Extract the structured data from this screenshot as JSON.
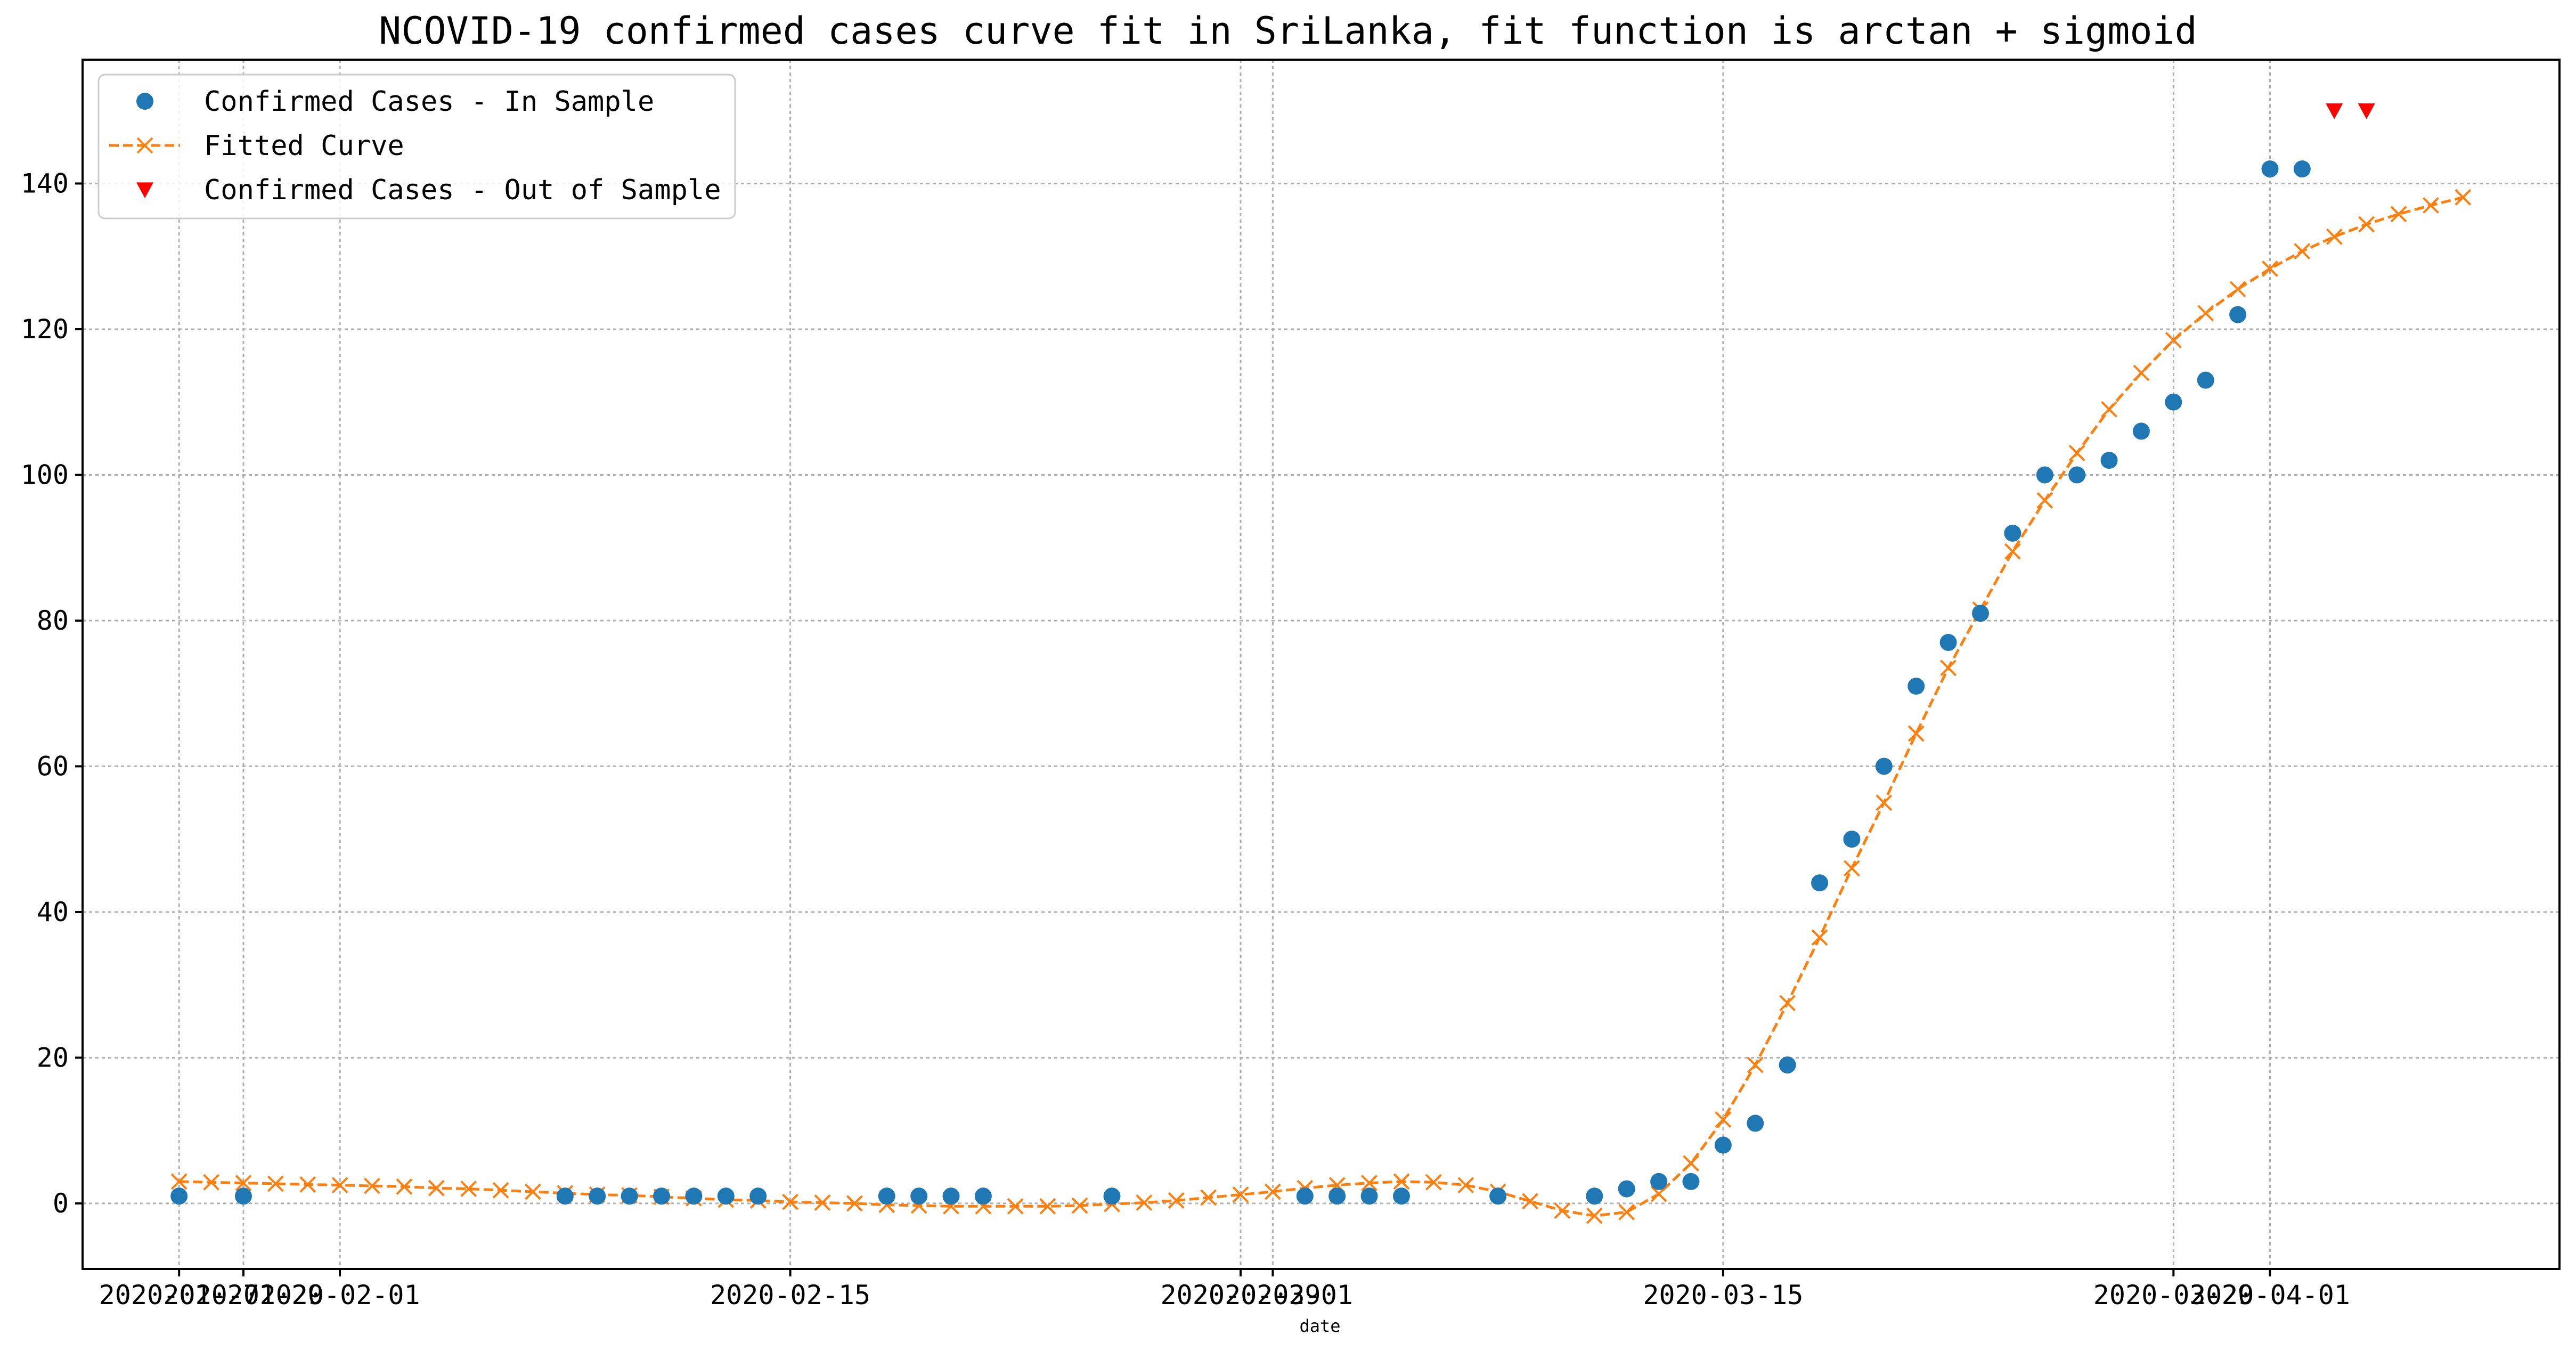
{
  "chart_data": {
    "type": "line",
    "title": "NCOVID-19 confirmed cases curve fit in SriLanka, fit function is arctan + sigmoid",
    "xlabel": "date",
    "ylabel": "",
    "x_axis": "date",
    "xlim": [
      "2020-01-24",
      "2020-04-10"
    ],
    "ylim": [
      -9,
      157
    ],
    "x_ticks": [
      {
        "date": "2020-01-27",
        "label": "2020-01-27"
      },
      {
        "date": "2020-01-29",
        "label": "2020-01-29"
      },
      {
        "date": "2020-02-01",
        "label": "2020-02-01"
      },
      {
        "date": "2020-02-15",
        "label": "2020-02-15"
      },
      {
        "date": "2020-02-29",
        "label": "2020-02-29"
      },
      {
        "date": "2020-03-01",
        "label": "2020-03-01"
      },
      {
        "date": "2020-03-15",
        "label": "2020-03-15"
      },
      {
        "date": "2020-03-29",
        "label": "2020-03-29"
      },
      {
        "date": "2020-04-01",
        "label": "2020-04-01"
      }
    ],
    "y_ticks": [
      0,
      20,
      40,
      60,
      80,
      100,
      120,
      140
    ],
    "grid": true,
    "legend_position": "top-left",
    "series": [
      {
        "name": "Confirmed Cases - In Sample",
        "style": "markers-circle",
        "color": "#1f77b4",
        "points": [
          [
            "2020-01-27",
            1
          ],
          [
            "2020-01-29",
            1
          ],
          [
            "2020-02-08",
            1
          ],
          [
            "2020-02-09",
            1
          ],
          [
            "2020-02-10",
            1
          ],
          [
            "2020-02-11",
            1
          ],
          [
            "2020-02-12",
            1
          ],
          [
            "2020-02-13",
            1
          ],
          [
            "2020-02-14",
            1
          ],
          [
            "2020-02-18",
            1
          ],
          [
            "2020-02-19",
            1
          ],
          [
            "2020-02-20",
            1
          ],
          [
            "2020-02-21",
            1
          ],
          [
            "2020-02-25",
            1
          ],
          [
            "2020-03-02",
            1
          ],
          [
            "2020-03-03",
            1
          ],
          [
            "2020-03-04",
            1
          ],
          [
            "2020-03-05",
            1
          ],
          [
            "2020-03-08",
            1
          ],
          [
            "2020-03-11",
            1
          ],
          [
            "2020-03-12",
            2
          ],
          [
            "2020-03-13",
            3
          ],
          [
            "2020-03-14",
            3
          ],
          [
            "2020-03-15",
            8
          ],
          [
            "2020-03-16",
            11
          ],
          [
            "2020-03-17",
            19
          ],
          [
            "2020-03-18",
            44
          ],
          [
            "2020-03-19",
            50
          ],
          [
            "2020-03-20",
            60
          ],
          [
            "2020-03-21",
            71
          ],
          [
            "2020-03-22",
            77
          ],
          [
            "2020-03-23",
            81
          ],
          [
            "2020-03-24",
            92
          ],
          [
            "2020-03-25",
            100
          ],
          [
            "2020-03-26",
            100
          ],
          [
            "2020-03-27",
            102
          ],
          [
            "2020-03-28",
            106
          ],
          [
            "2020-03-29",
            110
          ],
          [
            "2020-03-30",
            113
          ],
          [
            "2020-03-31",
            122
          ],
          [
            "2020-04-01",
            142
          ],
          [
            "2020-04-02",
            142
          ]
        ]
      },
      {
        "name": "Fitted Curve",
        "style": "dashed-line-x-markers",
        "color": "#ff7f0e",
        "points": [
          [
            "2020-01-27",
            3.0
          ],
          [
            "2020-01-28",
            2.9
          ],
          [
            "2020-01-29",
            2.8
          ],
          [
            "2020-01-30",
            2.7
          ],
          [
            "2020-01-31",
            2.6
          ],
          [
            "2020-02-01",
            2.5
          ],
          [
            "2020-02-02",
            2.4
          ],
          [
            "2020-02-03",
            2.3
          ],
          [
            "2020-02-04",
            2.1
          ],
          [
            "2020-02-05",
            2.0
          ],
          [
            "2020-02-06",
            1.8
          ],
          [
            "2020-02-07",
            1.6
          ],
          [
            "2020-02-08",
            1.4
          ],
          [
            "2020-02-09",
            1.2
          ],
          [
            "2020-02-10",
            1.1
          ],
          [
            "2020-02-11",
            0.9
          ],
          [
            "2020-02-12",
            0.7
          ],
          [
            "2020-02-13",
            0.5
          ],
          [
            "2020-02-14",
            0.4
          ],
          [
            "2020-02-15",
            0.2
          ],
          [
            "2020-02-16",
            0.1
          ],
          [
            "2020-02-17",
            0.0
          ],
          [
            "2020-02-18",
            -0.2
          ],
          [
            "2020-02-19",
            -0.3
          ],
          [
            "2020-02-20",
            -0.4
          ],
          [
            "2020-02-21",
            -0.4
          ],
          [
            "2020-02-22",
            -0.4
          ],
          [
            "2020-02-23",
            -0.4
          ],
          [
            "2020-02-24",
            -0.3
          ],
          [
            "2020-02-25",
            -0.1
          ],
          [
            "2020-02-26",
            0.1
          ],
          [
            "2020-02-27",
            0.4
          ],
          [
            "2020-02-28",
            0.8
          ],
          [
            "2020-02-29",
            1.2
          ],
          [
            "2020-03-01",
            1.6
          ],
          [
            "2020-03-02",
            2.1
          ],
          [
            "2020-03-03",
            2.5
          ],
          [
            "2020-03-04",
            2.8
          ],
          [
            "2020-03-05",
            3.0
          ],
          [
            "2020-03-06",
            2.9
          ],
          [
            "2020-03-07",
            2.5
          ],
          [
            "2020-03-08",
            1.6
          ],
          [
            "2020-03-09",
            0.3
          ],
          [
            "2020-03-10",
            -1.0
          ],
          [
            "2020-03-11",
            -1.7
          ],
          [
            "2020-03-12",
            -1.2
          ],
          [
            "2020-03-13",
            1.3
          ],
          [
            "2020-03-14",
            5.5
          ],
          [
            "2020-03-15",
            11.5
          ],
          [
            "2020-03-16",
            19.0
          ],
          [
            "2020-03-17",
            27.5
          ],
          [
            "2020-03-18",
            36.5
          ],
          [
            "2020-03-19",
            46.0
          ],
          [
            "2020-03-20",
            55.0
          ],
          [
            "2020-03-21",
            64.5
          ],
          [
            "2020-03-22",
            73.5
          ],
          [
            "2020-03-23",
            81.5
          ],
          [
            "2020-03-24",
            89.5
          ],
          [
            "2020-03-25",
            96.5
          ],
          [
            "2020-03-26",
            103.0
          ],
          [
            "2020-03-27",
            109.0
          ],
          [
            "2020-03-28",
            114.0
          ],
          [
            "2020-03-29",
            118.5
          ],
          [
            "2020-03-30",
            122.2
          ],
          [
            "2020-03-31",
            125.5
          ],
          [
            "2020-04-01",
            128.3
          ],
          [
            "2020-04-02",
            130.7
          ],
          [
            "2020-04-03",
            132.7
          ],
          [
            "2020-04-04",
            134.4
          ],
          [
            "2020-04-05",
            135.8
          ],
          [
            "2020-04-06",
            137.0
          ],
          [
            "2020-04-07",
            138.1
          ]
        ]
      },
      {
        "name": "Confirmed Cases - Out of Sample",
        "style": "markers-triangle-down",
        "color": "#ff0000",
        "points": [
          [
            "2020-04-03",
            150
          ],
          [
            "2020-04-04",
            150
          ]
        ]
      }
    ]
  }
}
